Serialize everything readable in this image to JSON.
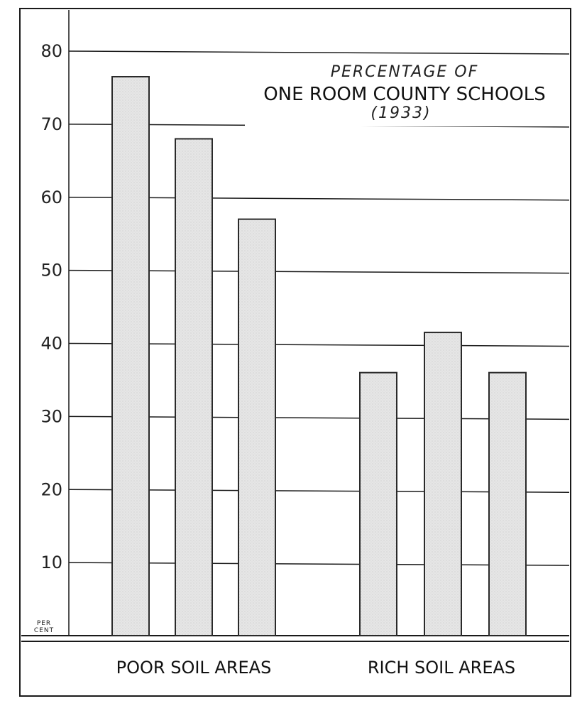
{
  "chart_data": {
    "type": "bar",
    "title_lines": [
      "PERCENTAGE OF",
      "ONE ROOM COUNTY SCHOOLS",
      "(1933)"
    ],
    "ylabel": "PER CENT",
    "ylim": [
      0,
      80
    ],
    "yticks": [
      10,
      20,
      30,
      40,
      50,
      60,
      70,
      80
    ],
    "grid": true,
    "groups": [
      {
        "label": "POOR SOIL AREAS",
        "values": [
          76.5,
          68,
          57
        ]
      },
      {
        "label": "RICH SOIL AREAS",
        "values": [
          36,
          41.5,
          36
        ]
      }
    ]
  },
  "colors": {
    "bar_fill": "#e4e4e4",
    "bar_stroke": "#2a2a2a",
    "grid": "#1a1a1a",
    "frame": "#1a1a1a"
  }
}
